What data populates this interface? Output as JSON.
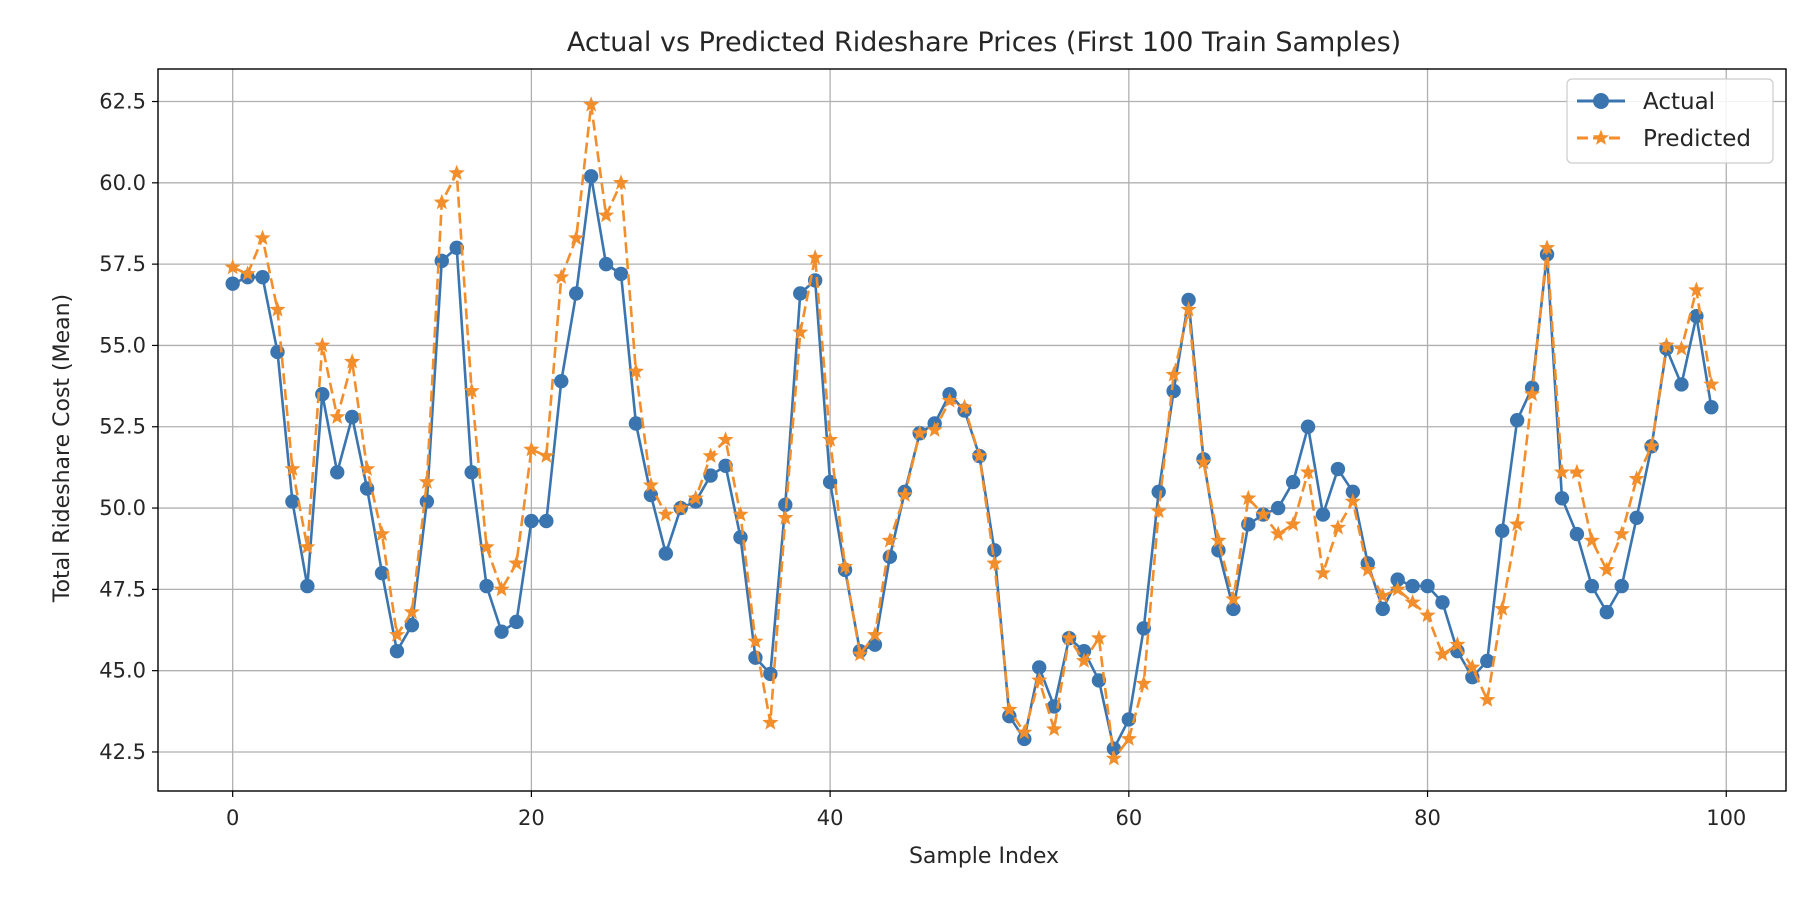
{
  "chart_data": {
    "type": "line",
    "title": "Actual vs Predicted Rideshare Prices (First 100 Train Samples)",
    "xlabel": "Sample Index",
    "ylabel": "Total Rideshare Cost (Mean)",
    "xlim": [
      -5,
      104
    ],
    "ylim": [
      41.3,
      63.5
    ],
    "xticks": [
      0,
      20,
      40,
      60,
      80,
      100
    ],
    "yticks": [
      42.5,
      45.0,
      47.5,
      50.0,
      52.5,
      55.0,
      57.5,
      60.0,
      62.5
    ],
    "grid": true,
    "legend_position": "top-right",
    "x": [
      0,
      1,
      2,
      3,
      4,
      5,
      6,
      7,
      8,
      9,
      10,
      11,
      12,
      13,
      14,
      15,
      16,
      17,
      18,
      19,
      20,
      21,
      22,
      23,
      24,
      25,
      26,
      27,
      28,
      29,
      30,
      31,
      32,
      33,
      34,
      35,
      36,
      37,
      38,
      39,
      40,
      41,
      42,
      43,
      44,
      45,
      46,
      47,
      48,
      49,
      50,
      51,
      52,
      53,
      54,
      55,
      56,
      57,
      58,
      59,
      60,
      61,
      62,
      63,
      64,
      65,
      66,
      67,
      68,
      69,
      70,
      71,
      72,
      73,
      74,
      75,
      76,
      77,
      78,
      79,
      80,
      81,
      82,
      83,
      84,
      85,
      86,
      87,
      88,
      89,
      90,
      91,
      92,
      93,
      94,
      95,
      96,
      97,
      98,
      99
    ],
    "series": [
      {
        "name": "Actual",
        "color": "#3a75b0",
        "marker": "circle",
        "linestyle": "solid",
        "values": [
          56.9,
          57.1,
          57.1,
          54.8,
          50.2,
          47.6,
          53.5,
          51.1,
          52.8,
          50.6,
          48.0,
          45.6,
          46.4,
          50.2,
          57.6,
          58.0,
          51.1,
          47.6,
          46.2,
          46.5,
          49.6,
          49.6,
          53.9,
          56.6,
          60.2,
          57.5,
          57.2,
          52.6,
          50.4,
          48.6,
          50.0,
          50.2,
          51.0,
          51.3,
          49.1,
          45.4,
          44.9,
          50.1,
          56.6,
          57.0,
          50.8,
          48.1,
          45.6,
          45.8,
          48.5,
          50.5,
          52.3,
          52.6,
          53.5,
          53.0,
          51.6,
          48.7,
          43.6,
          42.9,
          45.1,
          43.9,
          46.0,
          45.6,
          44.7,
          42.6,
          43.5,
          46.3,
          50.5,
          53.6,
          56.4,
          51.5,
          48.7,
          46.9,
          49.5,
          49.8,
          50.0,
          50.8,
          52.5,
          49.8,
          51.2,
          50.5,
          48.3,
          46.9,
          47.8,
          47.6,
          47.6,
          47.1,
          45.6,
          44.8,
          45.3,
          49.3,
          52.7,
          53.7,
          57.8,
          50.3,
          49.2,
          47.6,
          46.8,
          47.6,
          49.7,
          51.9,
          54.9,
          53.8,
          55.9,
          53.1
        ]
      },
      {
        "name": "Predicted",
        "color": "#f28e2b",
        "marker": "star",
        "linestyle": "dashed",
        "values": [
          57.4,
          57.2,
          58.3,
          56.1,
          51.2,
          48.8,
          55.0,
          52.8,
          54.5,
          51.2,
          49.2,
          46.1,
          46.8,
          50.8,
          59.4,
          60.3,
          53.6,
          48.8,
          47.5,
          48.3,
          51.8,
          51.6,
          57.1,
          58.3,
          62.4,
          59.0,
          60.0,
          54.2,
          50.7,
          49.8,
          50.0,
          50.3,
          51.6,
          52.1,
          49.8,
          45.9,
          43.4,
          49.7,
          55.4,
          57.7,
          52.1,
          48.2,
          45.5,
          46.1,
          49.0,
          50.4,
          52.3,
          52.4,
          53.3,
          53.1,
          51.6,
          48.3,
          43.8,
          43.1,
          44.7,
          43.2,
          46.0,
          45.3,
          46.0,
          42.3,
          42.9,
          44.6,
          49.9,
          54.1,
          56.1,
          51.4,
          49.0,
          47.2,
          50.3,
          49.8,
          49.2,
          49.5,
          51.1,
          48.0,
          49.4,
          50.2,
          48.1,
          47.3,
          47.5,
          47.1,
          46.7,
          45.5,
          45.8,
          45.1,
          44.1,
          46.9,
          49.5,
          53.5,
          58.0,
          51.1,
          51.1,
          49.0,
          48.1,
          49.2,
          50.9,
          51.9,
          55.0,
          54.9,
          56.7,
          53.8
        ]
      }
    ]
  }
}
